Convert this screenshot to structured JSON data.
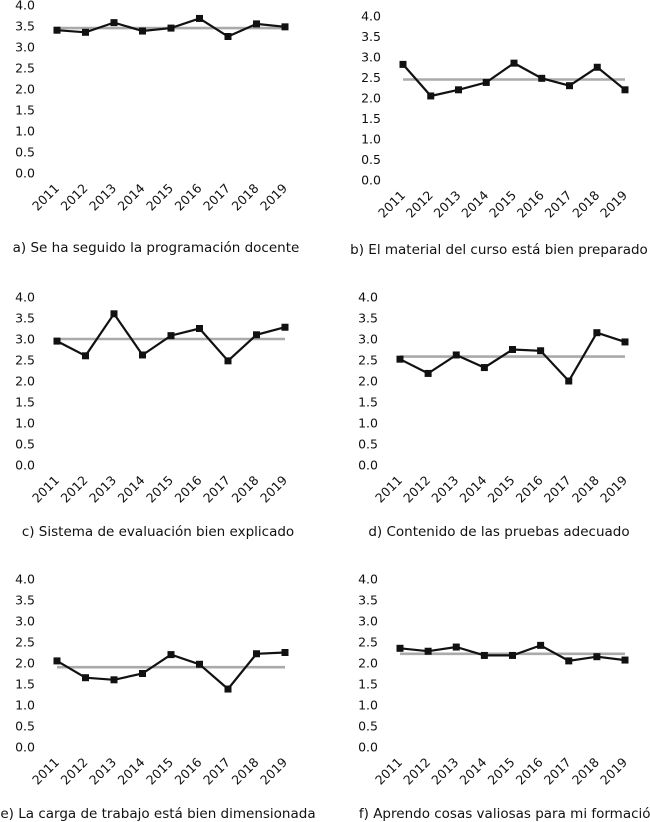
{
  "chart_data": [
    {
      "type": "line",
      "caption": "a) Se ha seguido la programación docente",
      "categories": [
        "2011",
        "2012",
        "2013",
        "2014",
        "2015",
        "2016",
        "2017",
        "2018",
        "2019"
      ],
      "yticks": [
        "0.0",
        "0.5",
        "1.0",
        "1.5",
        "2.0",
        "2.5",
        "3.0",
        "3.5",
        "4.0"
      ],
      "ylim": [
        0,
        4
      ],
      "series": [
        {
          "values": [
            3.4,
            3.35,
            3.58,
            3.38,
            3.45,
            3.68,
            3.25,
            3.55,
            3.48
          ],
          "color": "#111111",
          "marker": "square"
        },
        {
          "values": [
            3.45,
            3.45,
            3.45,
            3.45,
            3.45,
            3.45,
            3.45,
            3.45,
            3.45
          ],
          "color": "#aaaaaa",
          "marker": "none"
        }
      ]
    },
    {
      "type": "line",
      "caption": "b) El material del curso está bien preparado",
      "categories": [
        "2011",
        "2012",
        "2013",
        "2014",
        "2015",
        "2016",
        "2017",
        "2018",
        "2019"
      ],
      "yticks": [
        "0.0",
        "0.5",
        "1.0",
        "1.5",
        "2.0",
        "2.5",
        "3.0",
        "3.5",
        "4.0"
      ],
      "ylim": [
        0,
        4
      ],
      "series": [
        {
          "values": [
            2.82,
            2.05,
            2.2,
            2.38,
            2.85,
            2.48,
            2.3,
            2.75,
            2.2
          ],
          "color": "#111111",
          "marker": "square"
        },
        {
          "values": [
            2.45,
            2.45,
            2.45,
            2.45,
            2.45,
            2.45,
            2.45,
            2.45,
            2.45
          ],
          "color": "#aaaaaa",
          "marker": "none"
        }
      ]
    },
    {
      "type": "line",
      "caption": "c) Sistema de evaluación bien explicado",
      "categories": [
        "2011",
        "2012",
        "2013",
        "2014",
        "2015",
        "2016",
        "2017",
        "2018",
        "2019"
      ],
      "yticks": [
        "0.0",
        "0.5",
        "1.0",
        "1.5",
        "2.0",
        "2.5",
        "3.0",
        "3.5",
        "4.0"
      ],
      "ylim": [
        0,
        4
      ],
      "series": [
        {
          "values": [
            2.95,
            2.6,
            3.6,
            2.62,
            3.08,
            3.25,
            2.48,
            3.1,
            3.28
          ],
          "color": "#111111",
          "marker": "square"
        },
        {
          "values": [
            3.0,
            3.0,
            3.0,
            3.0,
            3.0,
            3.0,
            3.0,
            3.0,
            3.0
          ],
          "color": "#aaaaaa",
          "marker": "none"
        }
      ]
    },
    {
      "type": "line",
      "caption": "d) Contenido de las pruebas adecuado",
      "categories": [
        "2011",
        "2012",
        "2013",
        "2014",
        "2015",
        "2016",
        "2017",
        "2018",
        "2019"
      ],
      "yticks": [
        "0.0",
        "0.5",
        "1.0",
        "1.5",
        "2.0",
        "2.5",
        "3.0",
        "3.5",
        "4.0"
      ],
      "ylim": [
        0,
        4
      ],
      "series": [
        {
          "values": [
            2.52,
            2.18,
            2.62,
            2.32,
            2.75,
            2.72,
            2.0,
            3.15,
            2.93
          ],
          "color": "#111111",
          "marker": "square"
        },
        {
          "values": [
            2.58,
            2.58,
            2.58,
            2.58,
            2.58,
            2.58,
            2.58,
            2.58,
            2.58
          ],
          "color": "#aaaaaa",
          "marker": "none"
        }
      ]
    },
    {
      "type": "line",
      "caption": "e) La carga de trabajo está bien dimensionada",
      "categories": [
        "2011",
        "2012",
        "2013",
        "2014",
        "2015",
        "2016",
        "2017",
        "2018",
        "2019"
      ],
      "yticks": [
        "0.0",
        "0.5",
        "1.0",
        "1.5",
        "2.0",
        "2.5",
        "3.0",
        "3.5",
        "4.0"
      ],
      "ylim": [
        0,
        4
      ],
      "series": [
        {
          "values": [
            2.05,
            1.65,
            1.6,
            1.75,
            2.2,
            1.97,
            1.38,
            2.22,
            2.25
          ],
          "color": "#111111",
          "marker": "square"
        },
        {
          "values": [
            1.9,
            1.9,
            1.9,
            1.9,
            1.9,
            1.9,
            1.9,
            1.9,
            1.9
          ],
          "color": "#aaaaaa",
          "marker": "none"
        }
      ]
    },
    {
      "type": "line",
      "caption": "f) Aprendo cosas valiosas para mi formación",
      "categories": [
        "2011",
        "2012",
        "2013",
        "2014",
        "2015",
        "2016",
        "2017",
        "2018",
        "2019"
      ],
      "yticks": [
        "0.0",
        "0.5",
        "1.0",
        "1.5",
        "2.0",
        "2.5",
        "3.0",
        "3.5",
        "4.0"
      ],
      "ylim": [
        0,
        4
      ],
      "series": [
        {
          "values": [
            2.35,
            2.28,
            2.38,
            2.18,
            2.18,
            2.42,
            2.05,
            2.15,
            2.07
          ],
          "color": "#111111",
          "marker": "square"
        },
        {
          "values": [
            2.22,
            2.22,
            2.22,
            2.22,
            2.22,
            2.22,
            2.22,
            2.22,
            2.22
          ],
          "color": "#aaaaaa",
          "marker": "none"
        }
      ]
    }
  ]
}
